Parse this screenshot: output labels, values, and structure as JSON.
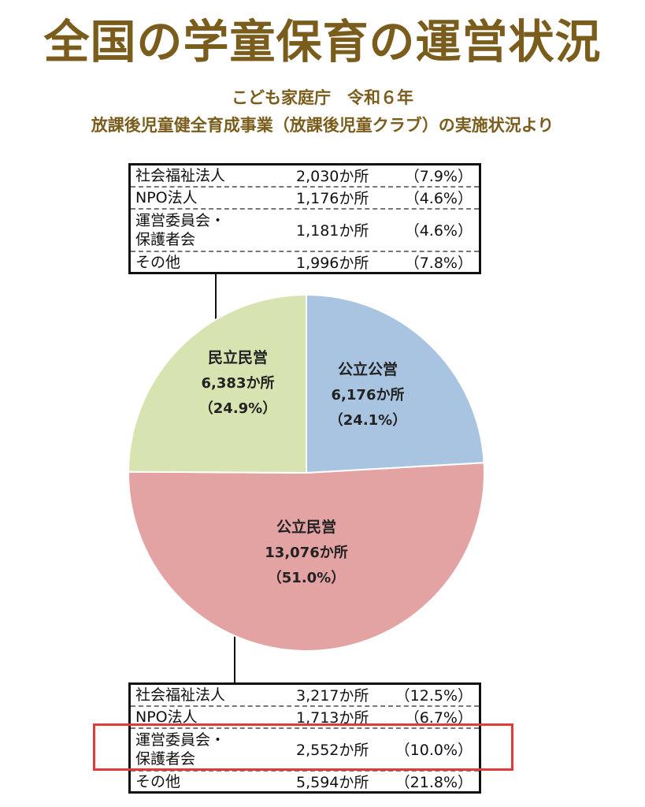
{
  "title": "全国の学童保育の運営状況",
  "subtitle1": "こども家庭庁　令和６年",
  "subtitle2": "放課後児童健全育成事業（放課後児童クラブ）の実施状況より",
  "chart_data": {
    "type": "pie",
    "slices": [
      {
        "name": "公立公営",
        "count_label": "6,176か所",
        "pct_label": "（24.1%）",
        "value": 24.1,
        "color": "#a9c4e0"
      },
      {
        "name": "公立民営",
        "count_label": "13,076か所",
        "pct_label": "（51.0%）",
        "value": 51.0,
        "color": "#e4a3a3"
      },
      {
        "name": "民立民営",
        "count_label": "6,383か所",
        "pct_label": "（24.9%）",
        "value": 24.9,
        "color": "#d7e4b1"
      }
    ],
    "breakdown_top": {
      "of": "民立民営",
      "rows": [
        {
          "name": [
            "社会福祉法人"
          ],
          "count": "2,030か所",
          "pct": "（7.9%）"
        },
        {
          "name": [
            "NPO法人"
          ],
          "count": "1,176か所",
          "pct": "（4.6%）"
        },
        {
          "name": [
            "運営委員会・",
            "保護者会"
          ],
          "count": "1,181か所",
          "pct": "（4.6%）"
        },
        {
          "name": [
            "その他"
          ],
          "count": "1,996か所",
          "pct": "（7.8%）"
        }
      ]
    },
    "breakdown_bottom": {
      "of": "公立民営",
      "rows": [
        {
          "name": [
            "社会福祉法人"
          ],
          "count": "3,217か所",
          "pct": "（12.5%）"
        },
        {
          "name": [
            "NPO法人"
          ],
          "count": "1,713か所",
          "pct": "（6.7%）"
        },
        {
          "name": [
            "運営委員会・",
            "保護者会"
          ],
          "count": "2,552か所",
          "pct": "（10.0%）",
          "highlighted": true
        },
        {
          "name": [
            "その他"
          ],
          "count": "5,594か所",
          "pct": "（21.8%）"
        }
      ]
    }
  },
  "colors": {
    "title": "#7a5d1c",
    "highlight": "#e23a3a"
  }
}
